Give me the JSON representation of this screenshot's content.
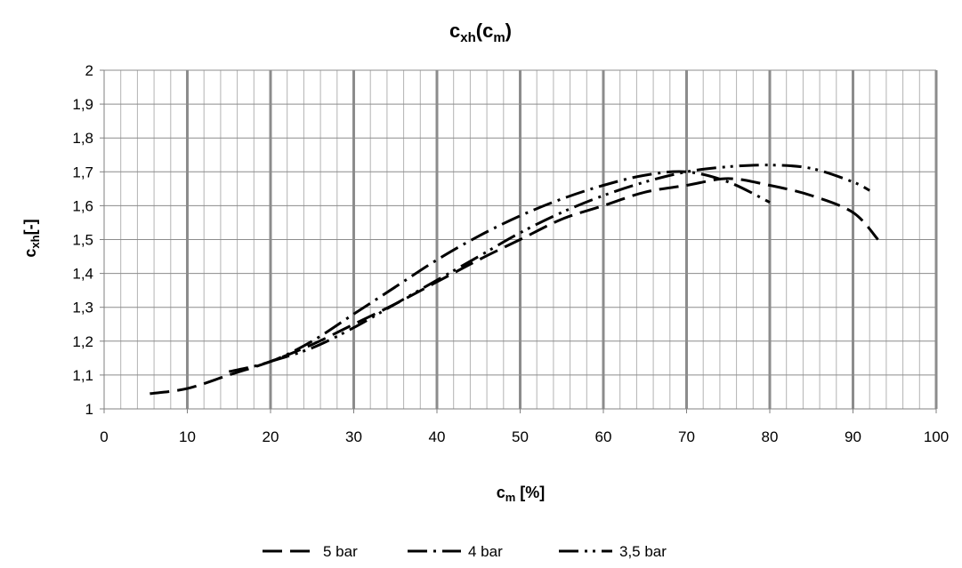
{
  "chart_data": {
    "type": "line",
    "title": {
      "main": "c",
      "sub1": "xh",
      "mid": "(c",
      "sub2": "m",
      "end": ")"
    },
    "xlabel": {
      "main": "c",
      "sub": "m",
      "rest": " [%]"
    },
    "ylabel": {
      "main": "c",
      "sub": "xh",
      "rest": "[-]"
    },
    "xlim": [
      0,
      100
    ],
    "ylim": [
      1,
      2
    ],
    "xticks": [
      0,
      10,
      20,
      30,
      40,
      50,
      60,
      70,
      80,
      90,
      100
    ],
    "yticks": [
      1,
      1.1,
      1.2,
      1.3,
      1.4,
      1.5,
      1.6,
      1.7,
      1.8,
      1.9,
      2
    ],
    "xtick_labels": [
      "0",
      "10",
      "20",
      "30",
      "40",
      "50",
      "60",
      "70",
      "80",
      "90",
      "100"
    ],
    "ytick_labels": [
      "1",
      "1,1",
      "1,2",
      "1,3",
      "1,4",
      "1,5",
      "1,6",
      "1,7",
      "1,8",
      "1,9",
      "2"
    ],
    "minor_xgrid_step": 2,
    "grid": true,
    "legend_position": "bottom",
    "series": [
      {
        "name": "5 bar",
        "dash": "long-dash",
        "x": [
          5.5,
          10,
          15,
          20,
          25,
          30,
          35,
          40,
          45,
          50,
          55,
          60,
          65,
          70,
          75,
          80,
          85,
          90,
          93
        ],
        "y": [
          1.045,
          1.06,
          1.1,
          1.14,
          1.19,
          1.25,
          1.31,
          1.375,
          1.44,
          1.5,
          1.56,
          1.6,
          1.64,
          1.66,
          1.68,
          1.66,
          1.63,
          1.58,
          1.5
        ]
      },
      {
        "name": "4 bar",
        "dash": "long-dash-dot",
        "x": [
          15,
          20,
          25,
          30,
          35,
          40,
          45,
          50,
          55,
          60,
          65,
          70,
          75,
          80
        ],
        "y": [
          1.11,
          1.14,
          1.2,
          1.28,
          1.36,
          1.44,
          1.51,
          1.57,
          1.62,
          1.66,
          1.69,
          1.7,
          1.67,
          1.61
        ]
      },
      {
        "name": "3,5 bar",
        "dash": "long-dash-dot-dot",
        "x": [
          20,
          25,
          30,
          35,
          40,
          45,
          50,
          55,
          60,
          65,
          70,
          75,
          80,
          85,
          90,
          92
        ],
        "y": [
          1.14,
          1.18,
          1.24,
          1.31,
          1.38,
          1.45,
          1.52,
          1.58,
          1.63,
          1.67,
          1.7,
          1.715,
          1.72,
          1.71,
          1.67,
          1.645
        ]
      }
    ]
  }
}
